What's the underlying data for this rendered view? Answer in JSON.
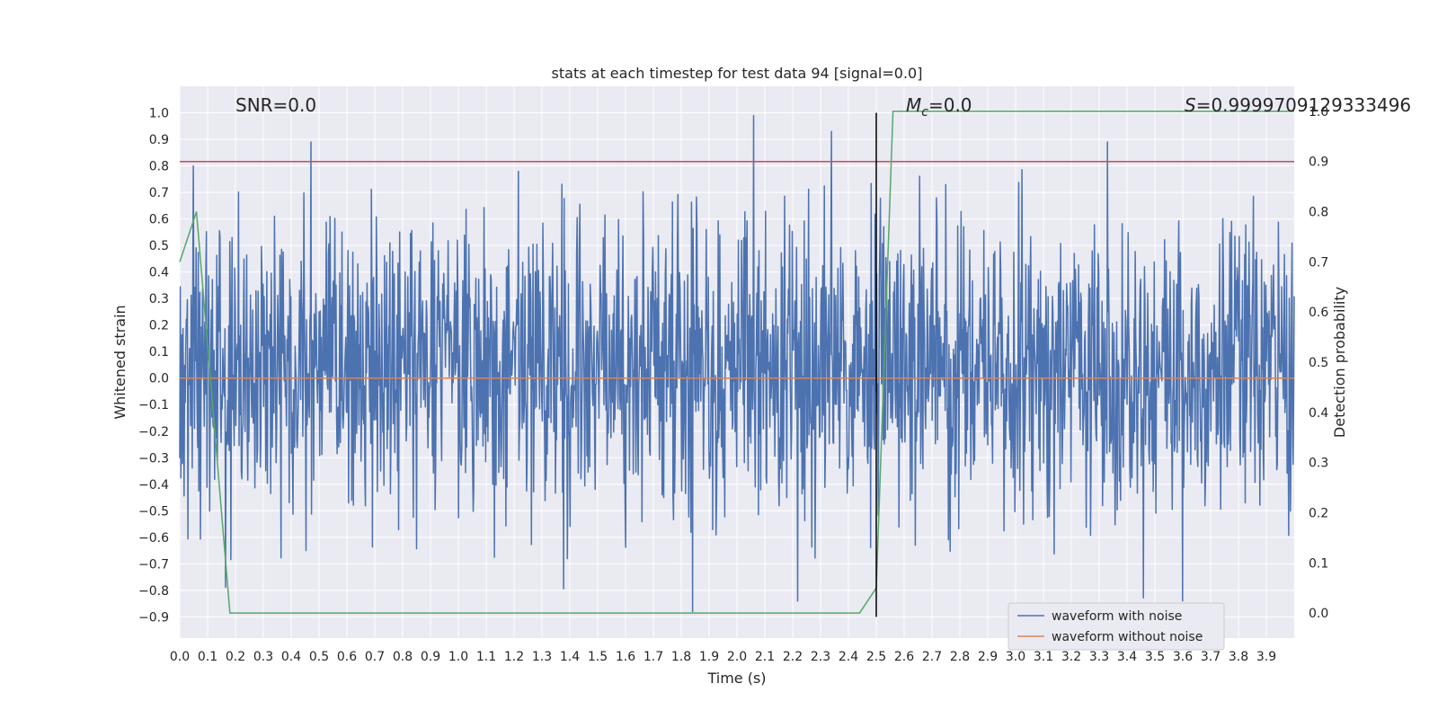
{
  "chart_data": {
    "type": "line",
    "title": "stats at each timestep for test data 94 [signal=0.0]",
    "xlabel": "Time (s)",
    "ylabel": "Whitened strain",
    "y2label": "Detection probability",
    "xlim": [
      0.0,
      4.0
    ],
    "ylim": [
      -0.98,
      1.1
    ],
    "y2lim": [
      -0.05,
      1.05
    ],
    "x_ticks": [
      "0.0",
      "0.1",
      "0.2",
      "0.3",
      "0.4",
      "0.5",
      "0.6",
      "0.7",
      "0.8",
      "0.9",
      "1.0",
      "1.1",
      "1.2",
      "1.3",
      "1.4",
      "1.5",
      "1.6",
      "1.7",
      "1.8",
      "1.9",
      "2.0",
      "2.1",
      "2.2",
      "2.3",
      "2.4",
      "2.5",
      "2.6",
      "2.7",
      "2.8",
      "2.9",
      "3.0",
      "3.1",
      "3.2",
      "3.3",
      "3.4",
      "3.5",
      "3.6",
      "3.7",
      "3.8",
      "3.9"
    ],
    "y_ticks": [
      "1.0",
      "0.9",
      "0.8",
      "0.7",
      "0.6",
      "0.5",
      "0.4",
      "0.3",
      "0.2",
      "0.1",
      "0.0",
      "−0.1",
      "−0.2",
      "−0.3",
      "−0.4",
      "−0.5",
      "−0.6",
      "−0.7",
      "−0.8",
      "−0.9"
    ],
    "y2_ticks": [
      "1.0",
      "0.9",
      "0.8",
      "0.7",
      "0.6",
      "0.5",
      "0.4",
      "0.3",
      "0.2",
      "0.1",
      "0.0"
    ],
    "annotations": {
      "snr": "SNR=0.0",
      "mc_symbol": "M",
      "mc_sub": "c",
      "mc_value": "=0.0",
      "s_value": "S=0.9999709129333496"
    },
    "legend": {
      "position": "lower right",
      "entries": [
        "waveform with noise",
        "waveform without noise"
      ]
    },
    "grid": true,
    "colors": {
      "background": "#eaeaf2",
      "grid": "#ffffff",
      "noise": "#4c72b0",
      "clean": "#dd8452",
      "prob": "#55a868",
      "threshold": "#c44e52",
      "vline": "#000000",
      "text": "#262626"
    },
    "noisy_waveform": {
      "description_free": true,
      "x_range": [
        0.0,
        4.0
      ],
      "approx_range": [
        -0.9,
        1.0
      ],
      "notable_peaks": [
        {
          "x": 0.47,
          "y": 0.89
        },
        {
          "x": 2.06,
          "y": 0.99
        },
        {
          "x": 2.34,
          "y": 0.93
        },
        {
          "x": 3.33,
          "y": 0.89
        },
        {
          "x": 1.84,
          "y": -0.88
        },
        {
          "x": 3.6,
          "y": -0.84
        }
      ]
    },
    "clean_waveform": {
      "y": 0.0
    },
    "threshold": {
      "y": 0.9
    },
    "vline_x": 2.5,
    "vline_range": [
      -0.9,
      1.0
    ],
    "probability_series": {
      "x": [
        0.0,
        0.06,
        0.18,
        0.19,
        2.2,
        2.44,
        2.5,
        2.56,
        4.0
      ],
      "y": [
        0.7,
        0.8,
        0.0,
        0.0,
        0.0,
        0.0,
        0.05,
        1.0,
        1.0
      ]
    }
  }
}
